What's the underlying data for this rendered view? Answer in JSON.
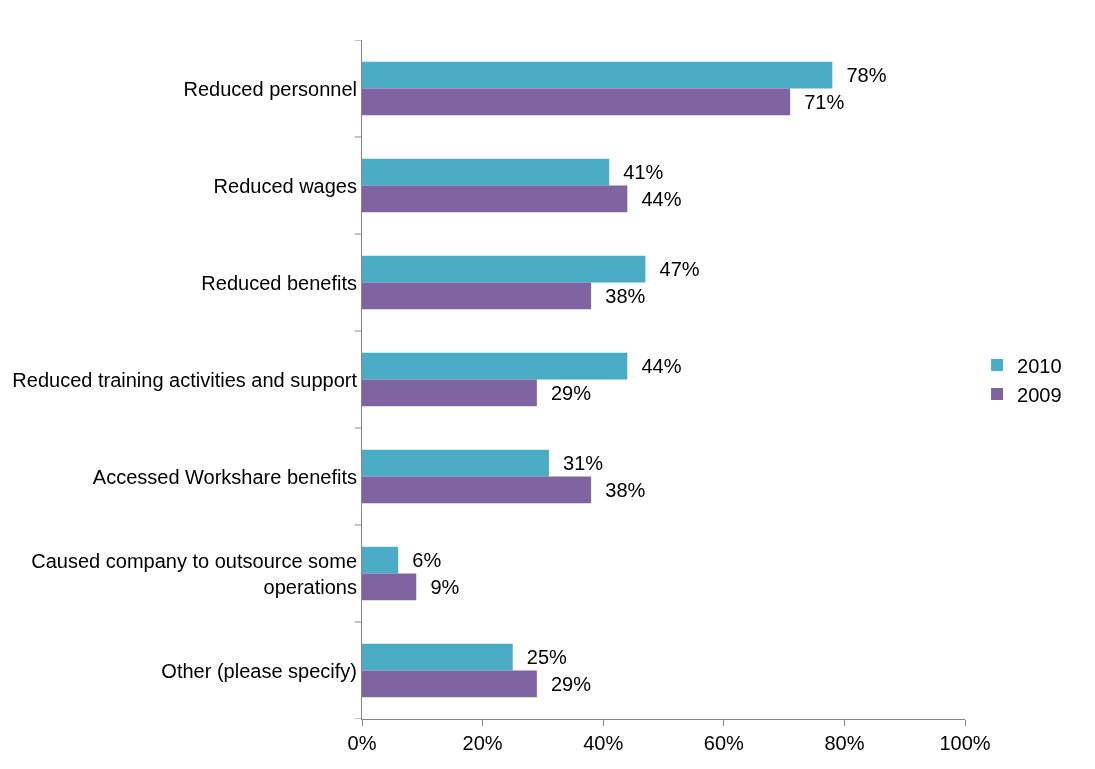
{
  "chart_data": {
    "type": "bar",
    "orientation": "horizontal",
    "categories": [
      "Reduced personnel",
      "Reduced wages",
      "Reduced benefits",
      "Reduced training activities and support",
      "Accessed Workshare benefits",
      "Caused company to outsource some operations",
      "Other (please specify)"
    ],
    "series": [
      {
        "name": "2010",
        "color": "#4bacc6",
        "values": [
          78,
          41,
          47,
          44,
          31,
          6,
          25
        ],
        "value_labels": [
          "78%",
          "41%",
          "47%",
          "44%",
          "31%",
          "6%",
          "25%"
        ]
      },
      {
        "name": "2009",
        "color": "#8064a2",
        "values": [
          71,
          44,
          38,
          29,
          38,
          9,
          29
        ],
        "value_labels": [
          "71%",
          "44%",
          "38%",
          "29%",
          "38%",
          "9%",
          "29%"
        ]
      }
    ],
    "xlim": [
      0,
      100
    ],
    "xticks": [
      {
        "value": 0,
        "label": "0%"
      },
      {
        "value": 20,
        "label": "20%"
      },
      {
        "value": 40,
        "label": "40%"
      },
      {
        "value": 60,
        "label": "60%"
      },
      {
        "value": 80,
        "label": "80%"
      },
      {
        "value": 100,
        "label": "100%"
      }
    ],
    "legend": "right"
  }
}
